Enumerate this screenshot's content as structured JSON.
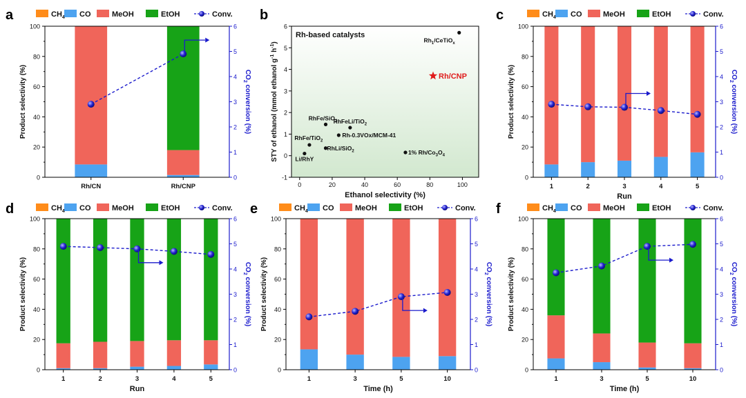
{
  "colors": {
    "CH4": "#ff8c1a",
    "CO": "#4da3f0",
    "MeOH": "#f0655a",
    "EtOH": "#17a317",
    "conv_line": "#1a1acc",
    "conv_axis": "#1a1acc",
    "scatter_bg_top": "#ffffff",
    "scatter_bg_bottom": "#d2e8cf",
    "highlight": "#e01b1b"
  },
  "legend": {
    "items": [
      {
        "key": "CH4",
        "label": "CH",
        "sub": "4"
      },
      {
        "key": "CO",
        "label": "CO",
        "sub": ""
      },
      {
        "key": "MeOH",
        "label": "MeOH",
        "sub": ""
      },
      {
        "key": "EtOH",
        "label": "EtOH",
        "sub": ""
      }
    ],
    "conv_label": "Conv."
  },
  "axis_labels": {
    "left": "Product selectivity (%)",
    "right_main": "CO",
    "right_sub": "2",
    "right_tail": " conversion (%)"
  },
  "chart_data": [
    {
      "panel": "a",
      "type": "bar",
      "xlabel": "",
      "categories": [
        "Rh/CN",
        "Rh/CNP"
      ],
      "ylim": [
        0,
        100
      ],
      "y2lim": [
        0,
        6
      ],
      "series": [
        {
          "name": "CH4",
          "values": [
            0,
            0
          ]
        },
        {
          "name": "CO",
          "values": [
            8.5,
            1.5
          ]
        },
        {
          "name": "MeOH",
          "values": [
            91.5,
            16.5
          ]
        },
        {
          "name": "EtOH",
          "values": [
            0,
            82
          ]
        }
      ],
      "conversion": [
        2.9,
        4.9
      ],
      "grid": false
    },
    {
      "panel": "b",
      "type": "scatter",
      "title": "Rh-based catalysts",
      "xlabel": "Ethanol selectivity (%)",
      "ylabel": "STY of ethanol (mmol ethanol g",
      "ylabel_sup": "-1",
      "ylabel_tail": " h",
      "ylabel_sup2": "-1",
      "ylabel_end": ")",
      "xlim": [
        -5,
        110
      ],
      "ylim": [
        -1,
        6
      ],
      "xticks": [
        0,
        20,
        40,
        60,
        80,
        100
      ],
      "yticks": [
        -1,
        0,
        1,
        2,
        3,
        4,
        5,
        6
      ],
      "points": [
        {
          "name": "Rh",
          "sub": "1",
          "tail": "/CeTiO",
          "sub2": "x",
          "x": 98,
          "y": 5.7
        },
        {
          "name": "Rh/CNP",
          "sub": "",
          "tail": "",
          "sub2": "",
          "x": 82,
          "y": 3.7,
          "highlight": true
        },
        {
          "name": "RhFe/SiO",
          "sub": "2",
          "tail": "",
          "sub2": "",
          "x": 16,
          "y": 1.45
        },
        {
          "name": "RhFeLi/TiO",
          "sub": "2",
          "tail": "",
          "sub2": "",
          "x": 31,
          "y": 1.3
        },
        {
          "name": "RhFe/TiO",
          "sub": "2",
          "tail": "",
          "sub2": "",
          "x": 6,
          "y": 0.5
        },
        {
          "name": "Rh-0.3VOx/MCM-41",
          "sub": "",
          "tail": "",
          "sub2": "",
          "x": 24,
          "y": 0.95
        },
        {
          "name": "RhLi/SiO",
          "sub": "2",
          "tail": "",
          "sub2": "",
          "x": 16,
          "y": 0.35
        },
        {
          "name": "Li/RhY",
          "sub": "",
          "tail": "",
          "sub2": "",
          "x": 3,
          "y": 0.1
        },
        {
          "name": "1% Rh/Co",
          "sub": "3",
          "tail": "O",
          "sub2": "4",
          "x": 65,
          "y": 0.15
        }
      ]
    },
    {
      "panel": "c",
      "type": "bar",
      "xlabel": "Run",
      "categories": [
        "1",
        "2",
        "3",
        "4",
        "5"
      ],
      "ylim": [
        0,
        100
      ],
      "y2lim": [
        0,
        6
      ],
      "series": [
        {
          "name": "CH4",
          "values": [
            0,
            0,
            0,
            0,
            0
          ]
        },
        {
          "name": "CO",
          "values": [
            8.5,
            10,
            11,
            13.5,
            16.5
          ]
        },
        {
          "name": "MeOH",
          "values": [
            91.5,
            90,
            89,
            86.5,
            83.5
          ]
        },
        {
          "name": "EtOH",
          "values": [
            0,
            0,
            0,
            0,
            0
          ]
        }
      ],
      "conversion": [
        2.9,
        2.8,
        2.78,
        2.65,
        2.5
      ],
      "grid": false
    },
    {
      "panel": "d",
      "type": "bar",
      "xlabel": "Run",
      "categories": [
        "1",
        "2",
        "3",
        "4",
        "5"
      ],
      "ylim": [
        0,
        100
      ],
      "y2lim": [
        0,
        6
      ],
      "series": [
        {
          "name": "CH4",
          "values": [
            0,
            0,
            0,
            0,
            0
          ]
        },
        {
          "name": "CO",
          "values": [
            1,
            1,
            2,
            2.5,
            3.5
          ]
        },
        {
          "name": "MeOH",
          "values": [
            16.5,
            17.5,
            17,
            17,
            16
          ]
        },
        {
          "name": "EtOH",
          "values": [
            82.5,
            81.5,
            81,
            80.5,
            80.5
          ]
        }
      ],
      "conversion": [
        4.9,
        4.85,
        4.8,
        4.7,
        4.58
      ],
      "grid": false
    },
    {
      "panel": "e",
      "type": "bar",
      "xlabel": "Time (h)",
      "categories": [
        "1",
        "3",
        "5",
        "10"
      ],
      "ylim": [
        0,
        100
      ],
      "y2lim": [
        0,
        6
      ],
      "series": [
        {
          "name": "CH4",
          "values": [
            0,
            0,
            0,
            0
          ]
        },
        {
          "name": "CO",
          "values": [
            13.5,
            10,
            8.5,
            9
          ]
        },
        {
          "name": "MeOH",
          "values": [
            86.5,
            90,
            91.5,
            91
          ]
        },
        {
          "name": "EtOH",
          "values": [
            0,
            0,
            0,
            0
          ]
        }
      ],
      "conversion": [
        2.1,
        2.32,
        2.9,
        3.07
      ],
      "grid": false
    },
    {
      "panel": "f",
      "type": "bar",
      "xlabel": "Time (h)",
      "categories": [
        "1",
        "3",
        "5",
        "10"
      ],
      "ylim": [
        0,
        100
      ],
      "y2lim": [
        0,
        6
      ],
      "series": [
        {
          "name": "CH4",
          "values": [
            0,
            0,
            0,
            0
          ]
        },
        {
          "name": "CO",
          "values": [
            7.5,
            5,
            1.5,
            1
          ]
        },
        {
          "name": "MeOH",
          "values": [
            28.5,
            19,
            16.5,
            16.5
          ]
        },
        {
          "name": "EtOH",
          "values": [
            64,
            76,
            82,
            82.5
          ]
        }
      ],
      "conversion": [
        3.85,
        4.12,
        4.9,
        4.98
      ],
      "grid": false
    }
  ]
}
